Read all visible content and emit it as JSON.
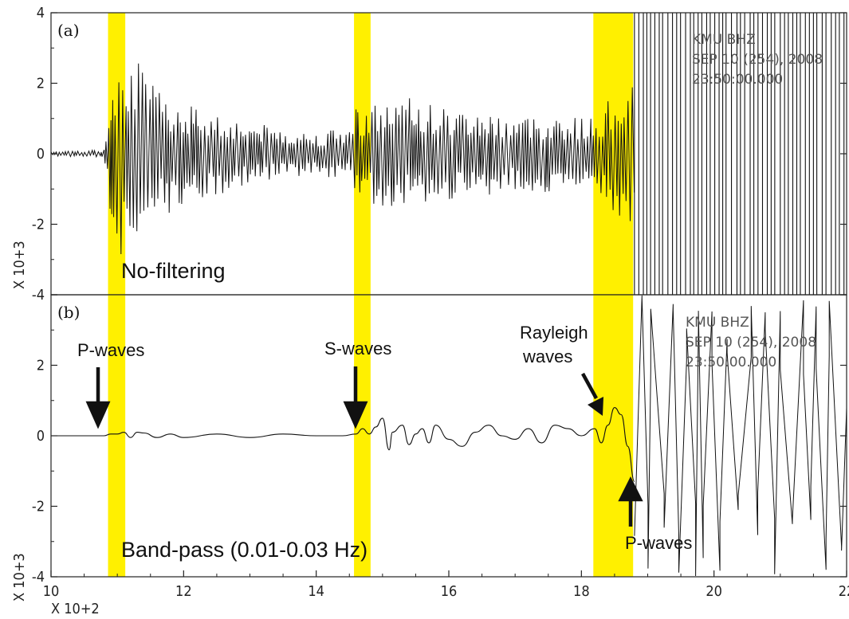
{
  "chart_data": [
    {
      "type": "line",
      "panel": "(a)",
      "label": "No-filtering",
      "station": [
        "KMU  BHZ",
        "SEP 10 (254), 2008",
        "23:50:00.000"
      ],
      "ylim": [
        -4,
        4
      ],
      "yticks": [
        -4,
        -2,
        0,
        2,
        4
      ],
      "ytick_labels": [
        "-4",
        "-2",
        "0",
        "2",
        "4"
      ],
      "yscale_label": "X 10+3",
      "xlim": [
        10,
        22
      ],
      "highlight_bands": [
        [
          10.86,
          11.12
        ],
        [
          14.57,
          14.82
        ],
        [
          18.18,
          18.78
        ]
      ],
      "envelope": [
        [
          10.0,
          0.06
        ],
        [
          10.8,
          0.12
        ],
        [
          10.9,
          2.0
        ],
        [
          11.0,
          3.6
        ],
        [
          11.2,
          3.2
        ],
        [
          11.5,
          2.0
        ],
        [
          12.0,
          1.5
        ],
        [
          13.0,
          0.9
        ],
        [
          14.0,
          0.6
        ],
        [
          14.5,
          0.8
        ],
        [
          14.6,
          1.4
        ],
        [
          15.0,
          1.5
        ],
        [
          15.5,
          1.6
        ],
        [
          16.0,
          1.3
        ],
        [
          17.0,
          1.1
        ],
        [
          17.8,
          1.1
        ],
        [
          18.2,
          1.0
        ],
        [
          18.5,
          1.8
        ],
        [
          18.8,
          2.2
        ]
      ],
      "ringing_from": 18.8
    },
    {
      "type": "line",
      "panel": "(b)",
      "label": "Band-pass (0.01-0.03 Hz)",
      "station": [
        "KMU  BHZ",
        "SEP 10 (254), 2008",
        "23:50:00.000"
      ],
      "ylim": [
        -4,
        4
      ],
      "yticks": [
        -4,
        -2,
        0,
        2,
        4
      ],
      "ytick_labels": [
        "-4",
        "-2",
        "0",
        "2",
        "4"
      ],
      "yscale_label": "X 10+3",
      "xlim": [
        10,
        22
      ],
      "xticks": [
        10,
        12,
        14,
        16,
        18,
        20,
        22
      ],
      "xtick_labels": [
        "10",
        "12",
        "14",
        "16",
        "18",
        "20",
        "22"
      ],
      "xscale_label": "X 10+2",
      "highlight_bands": [
        [
          10.86,
          11.12
        ],
        [
          14.57,
          14.82
        ],
        [
          18.18,
          18.78
        ]
      ],
      "x": [
        10.0,
        10.8,
        10.9,
        11.0,
        11.1,
        11.2,
        11.3,
        11.4,
        11.6,
        11.8,
        12.0,
        12.5,
        13.0,
        13.5,
        14.0,
        14.4,
        14.6,
        14.7,
        14.8,
        14.9,
        15.0,
        15.1,
        15.15,
        15.3,
        15.4,
        15.5,
        15.6,
        15.7,
        15.8,
        16.0,
        16.2,
        16.4,
        16.6,
        16.8,
        17.0,
        17.2,
        17.4,
        17.6,
        17.8,
        18.0,
        18.2,
        18.3,
        18.4,
        18.5,
        18.6,
        18.7,
        18.8
      ],
      "values": [
        0,
        0,
        0.05,
        0.05,
        0.1,
        -0.05,
        0.1,
        0.08,
        -0.05,
        0.05,
        -0.05,
        0.05,
        -0.05,
        0.05,
        0,
        0,
        0.05,
        0.2,
        0.05,
        0.25,
        0.5,
        -0.4,
        0.1,
        0.3,
        -0.25,
        0.05,
        0.2,
        -0.2,
        0.3,
        -0.1,
        -0.3,
        0.1,
        0.3,
        0,
        -0.1,
        0.2,
        -0.2,
        0.3,
        0.2,
        0,
        0.2,
        -0.2,
        0.3,
        0.8,
        0.6,
        -0.3,
        -1.3
      ],
      "ringing_from": 18.8,
      "annotations": [
        {
          "text": "P-waves",
          "x": 10.86,
          "y": 0
        },
        {
          "text": "S-waves",
          "x": 14.6,
          "y": 0
        },
        {
          "text": "Rayleigh waves",
          "x": 18.35,
          "y": 0.4
        },
        {
          "text": "P-waves",
          "x": 18.75,
          "y": -2.1
        }
      ]
    }
  ],
  "labels": {
    "panel_a": "(a)",
    "panel_b": "(b)",
    "no_filtering": "No-filtering",
    "band_pass": "Band-pass (0.01-0.03 Hz)",
    "p_waves": "P-waves",
    "s_waves": "S-waves",
    "rayleigh_1": "Rayleigh",
    "rayleigh_2": "waves",
    "p_waves_2": "P-waves",
    "station_a_1": "KMU  BHZ",
    "station_a_2": "SEP 10 (254), 2008",
    "station_a_3": "23:50:00.000",
    "station_b_1": "KMU  BHZ",
    "station_b_2": "SEP 10 (254), 2008",
    "station_b_3": "23:50:00.000",
    "yscale_a": "X 10+3",
    "yscale_b": "X 10+3",
    "xscale": "X 10+2"
  },
  "colors": {
    "highlight": "#fff000",
    "trace": "#111111",
    "axis": "#222222"
  }
}
